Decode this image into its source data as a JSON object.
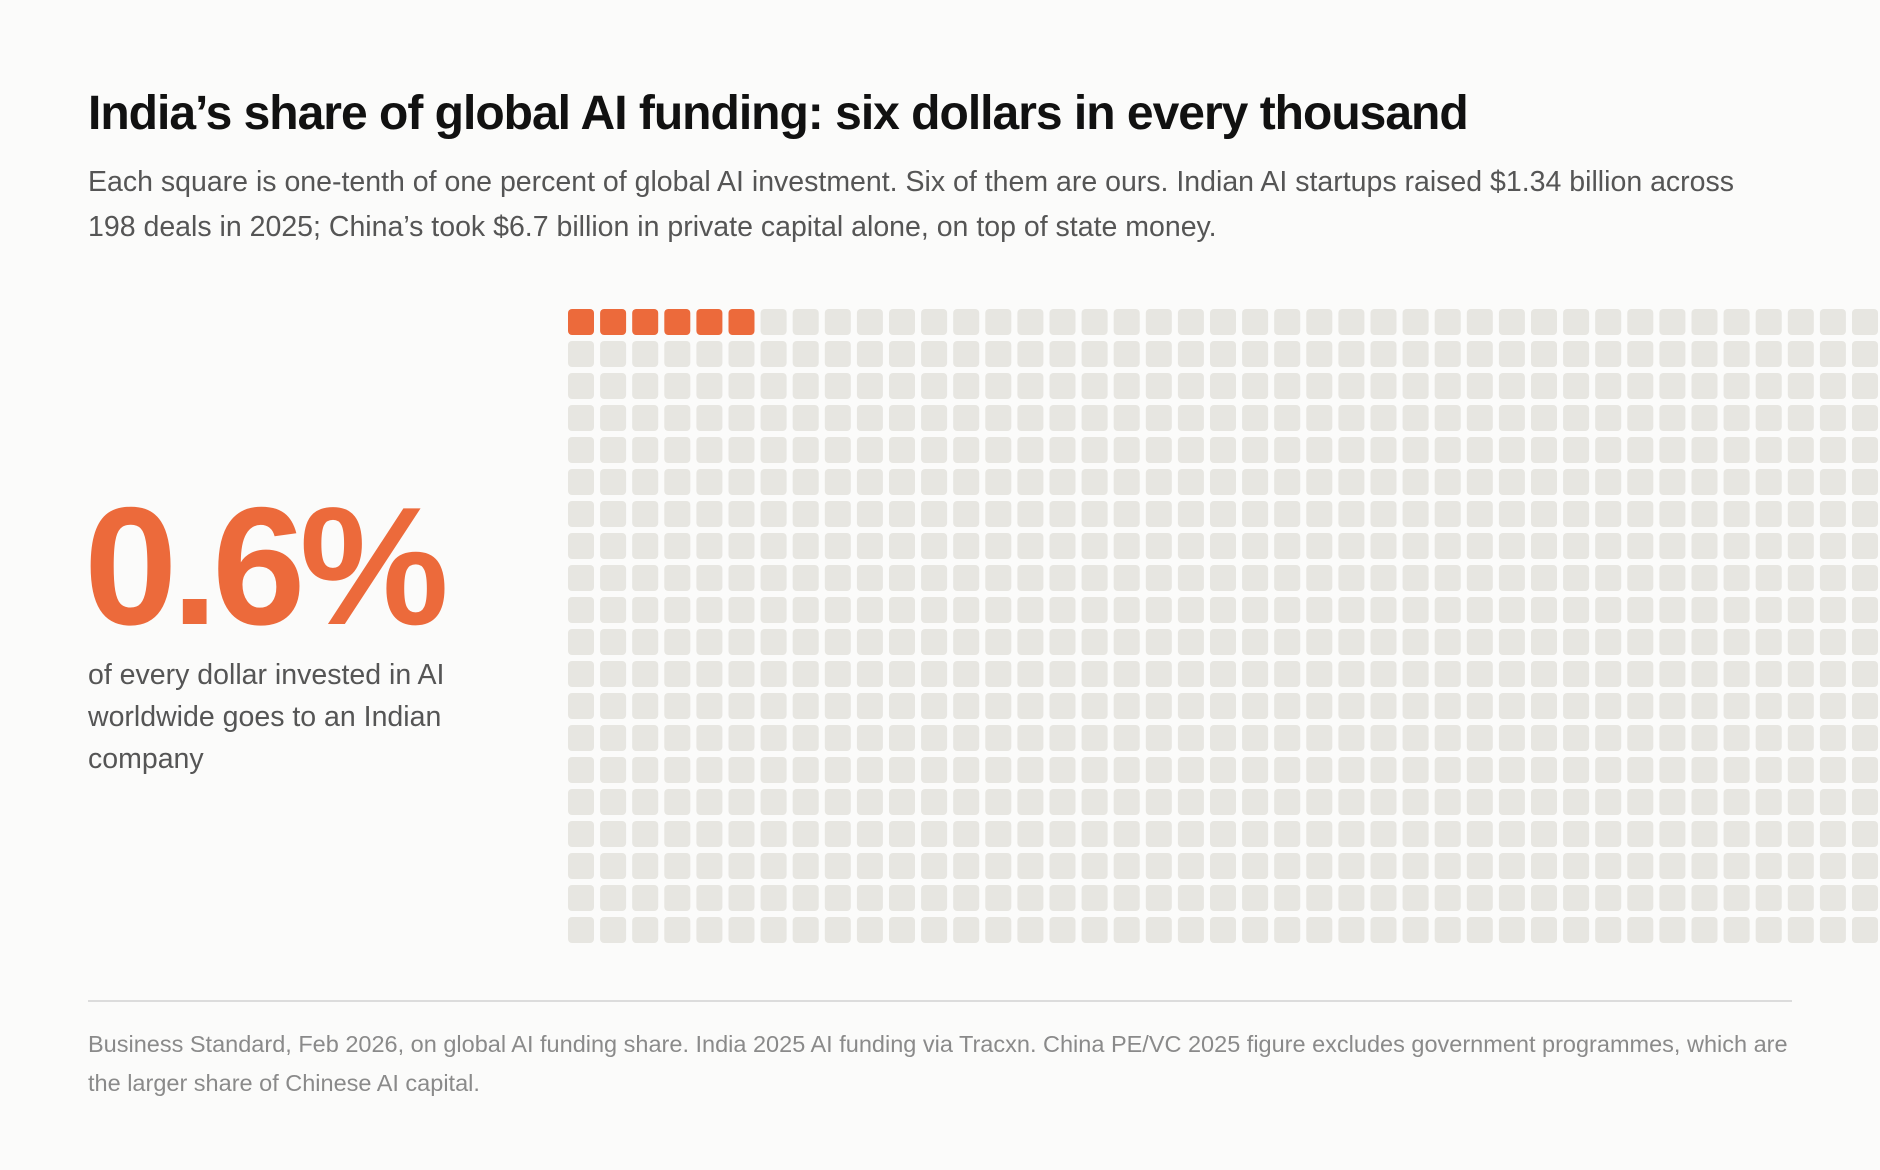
{
  "colors": {
    "accent": "#ec6a3b",
    "empty_square": "#e7e6e1",
    "background": "#fbfbfa",
    "title": "#111111",
    "body_text": "#555555",
    "source_text": "#8a8a8a"
  },
  "headline": {
    "title": "India’s share of global AI funding: six dollars in every thousand",
    "subtitle": "Each square is one-tenth of one percent of global AI investment. Six of them are ours. Indian AI startups raised $1.34 billion across 198 deals in 2025; China’s took $6.7 billion in private capital alone, on top of state money."
  },
  "stat": {
    "value": "0.6%",
    "caption": "of every dollar invested in AI worldwide goes to an Indian company"
  },
  "chart_data": {
    "type": "waffle",
    "total_squares": 1000,
    "filled_squares": 6,
    "square_value": "0.1% of global AI investment",
    "series": [
      {
        "value": 6,
        "color": "#ec6a3b"
      },
      {
        "value": 994,
        "color": "#e7e6e1"
      }
    ]
  },
  "footer": {
    "source": "Business Standard, Feb 2026, on global AI funding share. India 2025 AI funding via Tracxn. China PE/VC 2025 figure excludes government programmes, which are the larger share of Chinese AI capital."
  }
}
